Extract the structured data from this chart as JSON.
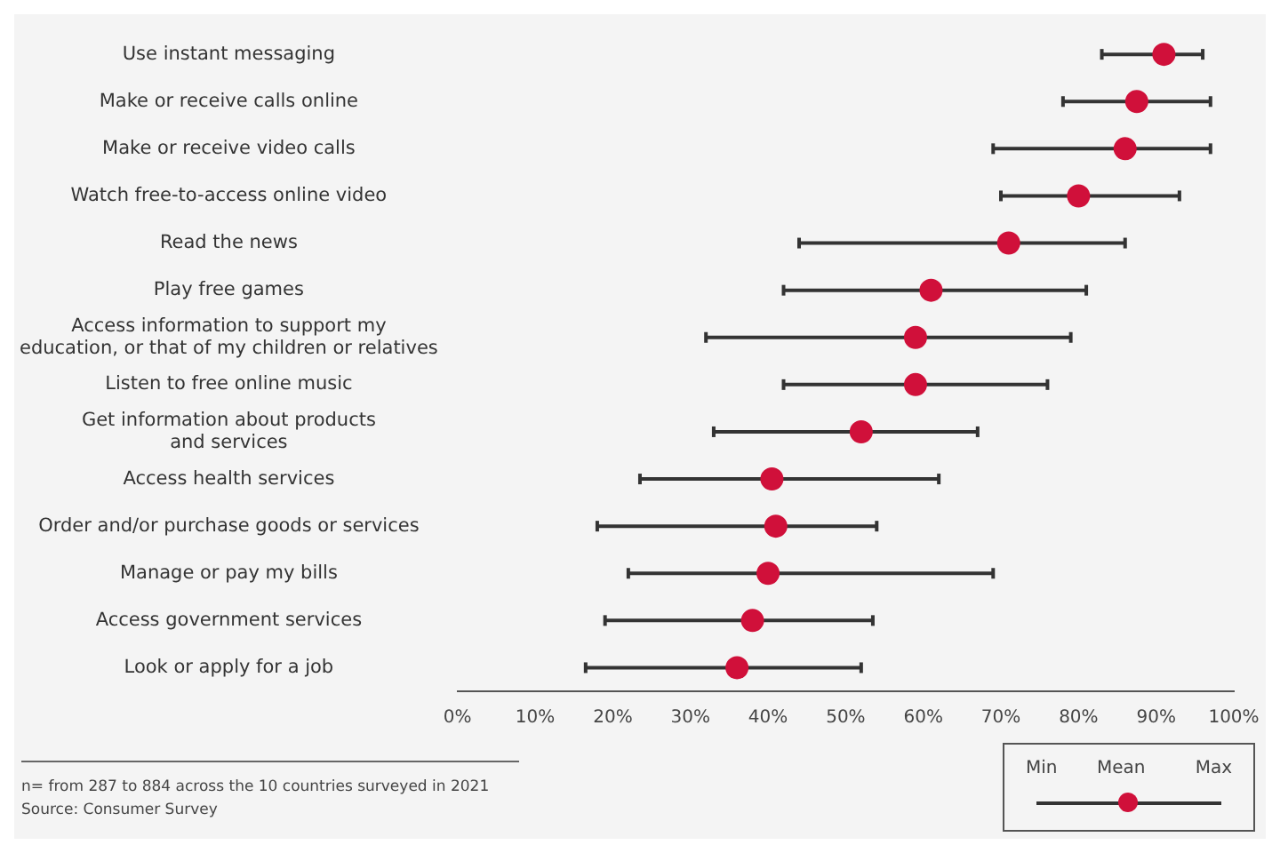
{
  "chart_data": {
    "type": "scatter",
    "orientation": "horizontal",
    "categories": [
      "Use instant messaging",
      "Make or receive calls online",
      "Make or receive video calls",
      "Watch free-to-access online video",
      "Read the news",
      "Play free games",
      "Access information to support my education, or that of my children or relatives",
      "Listen to free online music",
      "Get information about products and services",
      "Access health services",
      "Order and/or purchase goods or services",
      "Manage or pay my bills",
      "Access government services",
      "Look or apply for a job"
    ],
    "series": [
      {
        "name": "Mean",
        "color": "#d0103a",
        "values": [
          91,
          87.5,
          86,
          80,
          71,
          61,
          59,
          59,
          52,
          40.5,
          41,
          40,
          38,
          36
        ],
        "errors": [
          [
            83,
            96
          ],
          [
            78,
            97
          ],
          [
            69,
            97
          ],
          [
            70,
            93
          ],
          [
            44,
            86
          ],
          [
            42,
            81
          ],
          [
            32,
            79
          ],
          [
            42,
            76
          ],
          [
            33,
            67
          ],
          [
            23.5,
            62
          ],
          [
            18,
            54
          ],
          [
            22,
            69
          ],
          [
            19,
            53.5
          ],
          [
            16.5,
            52
          ]
        ]
      }
    ],
    "xlim": [
      0,
      100
    ],
    "xticks": [
      {
        "value": 0,
        "label": "0%"
      },
      {
        "value": 10,
        "label": "10%"
      },
      {
        "value": 20,
        "label": "20%"
      },
      {
        "value": 30,
        "label": "30%"
      },
      {
        "value": 40,
        "label": "40%"
      },
      {
        "value": 50,
        "label": "50%"
      },
      {
        "value": 60,
        "label": "60%"
      },
      {
        "value": 70,
        "label": "70%"
      },
      {
        "value": 80,
        "label": "80%"
      },
      {
        "value": 90,
        "label": "90%"
      },
      {
        "value": 100,
        "label": "100%"
      }
    ],
    "grid": false,
    "marker": "circle",
    "legend": "bottom right",
    "annotations": [
      "Min",
      "Max",
      "n= from 287 to 884 across the 10 countries surveyed in 2021",
      "Source: Consumer Survey"
    ]
  }
}
